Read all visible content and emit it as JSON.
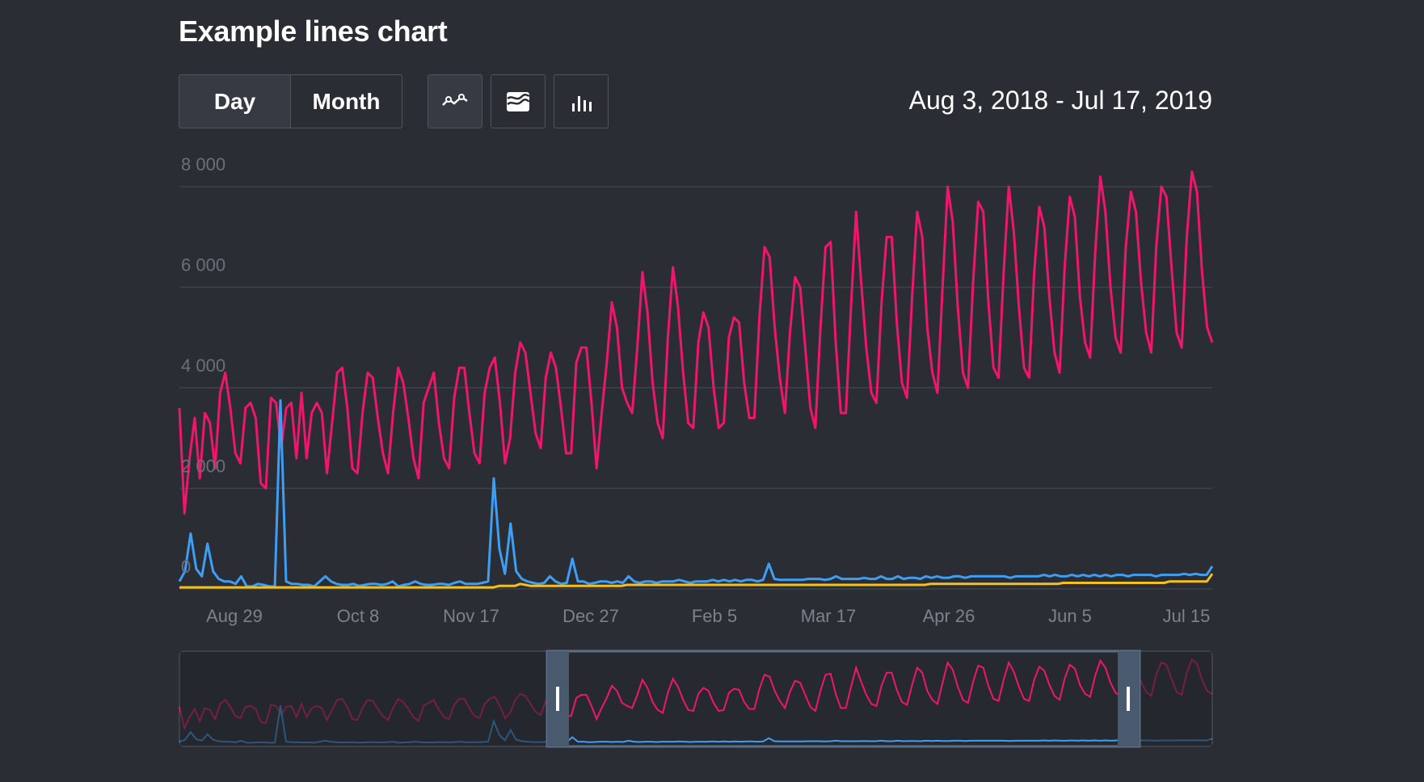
{
  "title": "Example lines chart",
  "toggle": {
    "day": "Day",
    "month": "Month",
    "selected": "day"
  },
  "chart_types": [
    {
      "icon": "line-chart-icon",
      "active": true
    },
    {
      "icon": "area-chart-icon",
      "active": false
    },
    {
      "icon": "bar-chart-icon",
      "active": false
    }
  ],
  "date_range": "Aug 3, 2018 - Jul 17, 2019",
  "colors": {
    "background": "#2a2d34",
    "pink": "#f0166e",
    "blue": "#3e9ef4",
    "yellow": "#f5c019",
    "grid": "#3e434b"
  },
  "chart_data": {
    "type": "line",
    "title": "Example lines chart",
    "xlabel": "",
    "ylabel": "",
    "ylim": [
      0,
      8500
    ],
    "yticks": [
      "0",
      "2 000",
      "4 000",
      "6 000",
      "8 000"
    ],
    "ytick_values": [
      0,
      2000,
      4000,
      6000,
      8000
    ],
    "xticks": [
      "Aug 29",
      "Oct 8",
      "Nov 17",
      "Dec 27",
      "Feb 5",
      "Mar 17",
      "Apr 26",
      "Jun 5",
      "Jul 15"
    ],
    "grid": true,
    "legend": "none",
    "series": [
      {
        "color": "#f0166e",
        "values": [
          3600,
          1500,
          2600,
          3400,
          2200,
          3500,
          3300,
          2400,
          3900,
          4300,
          3600,
          2700,
          2500,
          3600,
          3700,
          3400,
          2100,
          2000,
          3800,
          3700,
          2800,
          3600,
          3700,
          2600,
          3900,
          2600,
          3500,
          3700,
          3500,
          2300,
          3300,
          4300,
          4400,
          3600,
          2400,
          2300,
          3500,
          4300,
          4200,
          3400,
          2700,
          2300,
          3500,
          4400,
          4100,
          3400,
          2600,
          2200,
          3700,
          4000,
          4300,
          3300,
          2600,
          2400,
          3800,
          4400,
          4400,
          3500,
          2700,
          2500,
          3900,
          4400,
          4600,
          3700,
          2500,
          3000,
          4300,
          4900,
          4700,
          3900,
          3100,
          2800,
          4200,
          4700,
          4400,
          3600,
          2700,
          2700,
          4500,
          4800,
          4800,
          3700,
          2400,
          3500,
          4500,
          5700,
          5200,
          4000,
          3700,
          3500,
          4800,
          6300,
          5500,
          4100,
          3300,
          3000,
          5000,
          6400,
          5600,
          4300,
          3300,
          3200,
          4900,
          5500,
          5200,
          4000,
          3200,
          3300,
          5000,
          5400,
          5300,
          4100,
          3400,
          3400,
          5400,
          6800,
          6600,
          5200,
          4200,
          3500,
          5100,
          6200,
          6000,
          4800,
          3600,
          3200,
          5200,
          6800,
          6900,
          4900,
          3500,
          3500,
          5600,
          7500,
          6100,
          4800,
          3900,
          3700,
          5700,
          7000,
          7000,
          5300,
          4100,
          3800,
          5800,
          7500,
          7000,
          5200,
          4300,
          3900,
          6000,
          8000,
          7300,
          5600,
          4300,
          4000,
          6100,
          7700,
          7500,
          5700,
          4400,
          4200,
          6300,
          8000,
          7100,
          5600,
          4400,
          4200,
          6300,
          7600,
          7200,
          5800,
          4700,
          4300,
          6400,
          7800,
          7400,
          5800,
          4900,
          4600,
          6700,
          8200,
          7500,
          6000,
          5000,
          4700,
          6800,
          7900,
          7500,
          6100,
          5100,
          4700,
          6800,
          8000,
          7800,
          6400,
          5100,
          4800,
          7000,
          8300,
          7900,
          6300,
          5200,
          4900
        ]
      },
      {
        "color": "#3e9ef4",
        "values": [
          150,
          350,
          1100,
          400,
          250,
          900,
          350,
          200,
          150,
          150,
          100,
          250,
          50,
          50,
          100,
          80,
          50,
          50,
          3750,
          150,
          100,
          100,
          80,
          80,
          50,
          150,
          250,
          150,
          100,
          80,
          80,
          100,
          60,
          80,
          100,
          100,
          80,
          100,
          150,
          50,
          80,
          100,
          150,
          100,
          80,
          80,
          100,
          100,
          80,
          120,
          150,
          100,
          100,
          100,
          120,
          150,
          2200,
          800,
          300,
          1300,
          350,
          200,
          150,
          120,
          100,
          120,
          250,
          150,
          100,
          120,
          600,
          150,
          150,
          100,
          120,
          150,
          150,
          120,
          150,
          120,
          250,
          150,
          120,
          150,
          150,
          120,
          150,
          150,
          150,
          180,
          150,
          120,
          150,
          150,
          150,
          180,
          150,
          180,
          150,
          180,
          150,
          180,
          180,
          150,
          180,
          500,
          200,
          180,
          180,
          180,
          180,
          180,
          200,
          200,
          200,
          180,
          200,
          250,
          200,
          200,
          200,
          200,
          220,
          200,
          200,
          250,
          200,
          200,
          250,
          200,
          220,
          220,
          200,
          250,
          220,
          250,
          220,
          220,
          250,
          250,
          220,
          250,
          250,
          250,
          250,
          250,
          250,
          250,
          220,
          250,
          250,
          250,
          250,
          250,
          280,
          250,
          280,
          250,
          250,
          280,
          250,
          280,
          250,
          280,
          250,
          280,
          250,
          280,
          280,
          250,
          280,
          280,
          280,
          280,
          250,
          280,
          280,
          280,
          280,
          300,
          280,
          300,
          280,
          280,
          450
        ]
      },
      {
        "color": "#f5c019",
        "values": [
          30,
          30,
          30,
          30,
          30,
          30,
          30,
          30,
          30,
          30,
          30,
          30,
          30,
          30,
          30,
          30,
          30,
          30,
          30,
          30,
          30,
          30,
          30,
          30,
          30,
          30,
          30,
          30,
          30,
          30,
          30,
          30,
          30,
          30,
          30,
          30,
          30,
          30,
          30,
          30,
          30,
          30,
          30,
          30,
          30,
          30,
          30,
          30,
          30,
          30,
          30,
          30,
          30,
          30,
          30,
          30,
          30,
          30,
          30,
          30,
          60,
          60,
          60,
          60,
          100,
          80,
          60,
          60,
          60,
          60,
          60,
          60,
          60,
          60,
          60,
          60,
          60,
          60,
          60,
          60,
          60,
          60,
          60,
          60,
          80,
          80,
          80,
          80,
          80,
          80,
          80,
          80,
          80,
          80,
          80,
          80,
          80,
          80,
          80,
          80,
          80,
          80,
          80,
          80,
          80,
          80,
          80,
          80,
          80,
          80,
          80,
          80,
          80,
          80,
          80,
          80,
          80,
          80,
          80,
          80,
          80,
          80,
          80,
          80,
          80,
          80,
          80,
          80,
          80,
          80,
          80,
          80,
          80,
          80,
          80,
          80,
          80,
          80,
          80,
          80,
          80,
          100,
          100,
          100,
          100,
          100,
          100,
          100,
          100,
          100,
          100,
          100,
          100,
          100,
          100,
          100,
          100,
          100,
          100,
          100,
          100,
          100,
          100,
          100,
          100,
          100,
          120,
          120,
          120,
          120,
          120,
          120,
          120,
          120,
          120,
          120,
          120,
          120,
          120,
          120,
          120,
          120,
          120,
          120,
          120,
          120,
          150,
          150,
          150,
          150,
          150,
          150,
          150,
          150,
          300
        ]
      }
    ]
  }
}
